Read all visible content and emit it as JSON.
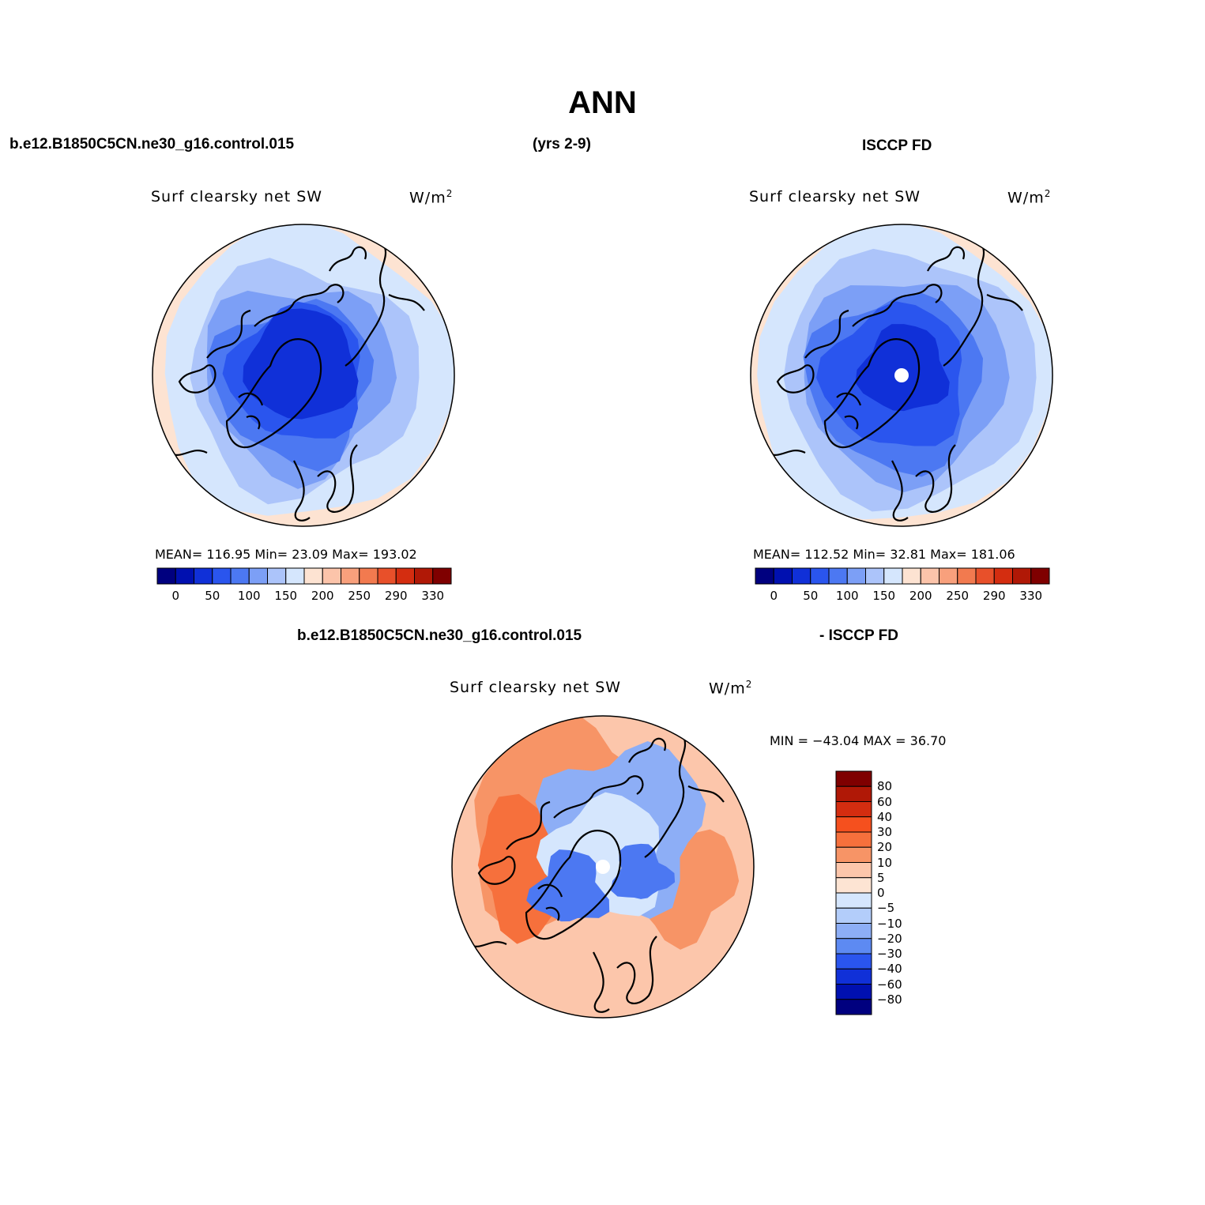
{
  "title": "ANN",
  "top_headers": {
    "left": "b.e12.B1850C5CN.ne30_g16.control.015",
    "center": "(yrs 2-9)",
    "right": "ISCCP FD"
  },
  "diff_headers": {
    "left": "b.e12.B1850C5CN.ne30_g16.control.015",
    "right": "- ISCCP FD"
  },
  "panels": [
    {
      "field_label": "Surf clearsky net SW",
      "units_base": "W/m",
      "units_exp": "2",
      "stats": "MEAN= 116.95   Min=   23.09   Max=  193.02"
    },
    {
      "field_label": "Surf clearsky net SW",
      "units_base": "W/m",
      "units_exp": "2",
      "stats": "MEAN= 112.52   Min=   32.81   Max=  181.06"
    },
    {
      "field_label": "Surf clearsky net SW",
      "units_base": "W/m",
      "units_exp": "2",
      "stats": "MIN = −43.04  MAX =   36.70"
    }
  ],
  "main_colorbar": {
    "colors": [
      "#00007f",
      "#0010b0",
      "#1030d8",
      "#2a55ee",
      "#4c78f2",
      "#7c9ff6",
      "#acc4fa",
      "#d5e6fd",
      "#fde3d2",
      "#fcc4aa",
      "#f8a07c",
      "#f27a4f",
      "#e8502a",
      "#d42d10",
      "#b01806",
      "#7f0000"
    ],
    "tick_labels": [
      "0",
      "50",
      "100",
      "150",
      "200",
      "250",
      "290",
      "330"
    ]
  },
  "diff_colorbar": {
    "colors": [
      "#7f0000",
      "#b01806",
      "#d42d10",
      "#f5501e",
      "#f6703c",
      "#f79466",
      "#fcc6ab",
      "#fde4d3",
      "#d5e6fd",
      "#b3cdfa",
      "#8daef6",
      "#5d8af2",
      "#2a55ee",
      "#1030d8",
      "#0010b0",
      "#00007f"
    ],
    "tick_labels": [
      "80",
      "60",
      "40",
      "30",
      "20",
      "10",
      "5",
      "0",
      "−5",
      "−10",
      "−20",
      "−30",
      "−40",
      "−60",
      "−80"
    ]
  },
  "map_colors": {
    "deep": "#1030d8",
    "mid": "#2a55ee",
    "light": "#4c78f2",
    "pale": "#7c9ff6",
    "paler": "#acc4fa",
    "palest": "#d5e6fd",
    "warm": "#fde3d2",
    "diff_warm1": "#fcc6ab",
    "diff_warm2": "#f79466",
    "diff_warm3": "#f6703c",
    "diff_cool1": "#d5e6fd",
    "diff_cool2": "#8daef6",
    "diff_cool3": "#4c78f2"
  }
}
